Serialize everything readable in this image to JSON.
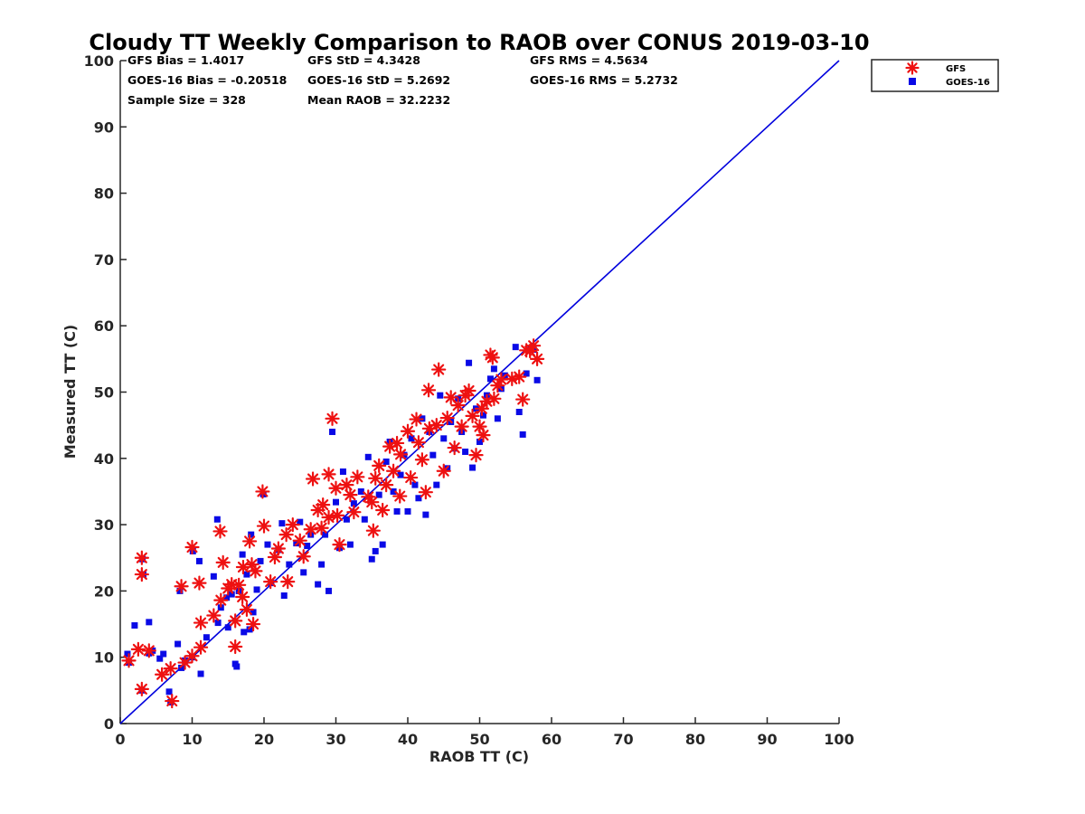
{
  "chart_data": {
    "type": "scatter",
    "title": "Cloudy TT Weekly Comparison to RAOB over CONUS 2019-03-10",
    "xlabel": "RAOB TT (C)",
    "ylabel": "Measured TT (C)",
    "xlim": [
      0,
      100
    ],
    "ylim": [
      0,
      100
    ],
    "xticks": [
      0,
      10,
      20,
      30,
      40,
      50,
      60,
      70,
      80,
      90,
      100
    ],
    "yticks": [
      0,
      10,
      20,
      30,
      40,
      50,
      60,
      70,
      80,
      90,
      100
    ],
    "grid": false,
    "legend_position": "top-right outside plot",
    "reference_line": {
      "name": "1:1 line",
      "from": [
        0,
        0
      ],
      "to": [
        100,
        100
      ],
      "color": "#0000dd"
    },
    "stats": [
      {
        "label": "GFS Bias = 1.4017"
      },
      {
        "label": "GFS StD = 4.3428"
      },
      {
        "label": "GFS RMS = 4.5634"
      },
      {
        "label": "GOES-16 Bias = -0.20518"
      },
      {
        "label": "GOES-16 StD = 5.2692"
      },
      {
        "label": "GOES-16 RMS = 5.2732"
      },
      {
        "label": "Sample Size = 328"
      },
      {
        "label": "Mean RAOB = 32.2232"
      }
    ],
    "series": [
      {
        "name": "GFS",
        "marker": "asterisk",
        "color": "#ee1111",
        "points": [
          [
            1.2,
            9.5
          ],
          [
            2.5,
            11.2
          ],
          [
            3.0,
            25.0
          ],
          [
            3.0,
            22.5
          ],
          [
            3.0,
            5.2
          ],
          [
            4.0,
            11.0
          ],
          [
            5.8,
            7.4
          ],
          [
            7.0,
            8.3
          ],
          [
            7.2,
            3.4
          ],
          [
            8.5,
            20.7
          ],
          [
            9.0,
            9.2
          ],
          [
            10.0,
            26.6
          ],
          [
            10.0,
            10.2
          ],
          [
            11.0,
            21.2
          ],
          [
            11.2,
            15.2
          ],
          [
            11.2,
            11.5
          ],
          [
            13.0,
            16.3
          ],
          [
            13.9,
            29.0
          ],
          [
            14.0,
            18.6
          ],
          [
            14.3,
            24.3
          ],
          [
            15.0,
            20.4
          ],
          [
            15.5,
            21.0
          ],
          [
            16.0,
            11.6
          ],
          [
            16.0,
            15.5
          ],
          [
            16.5,
            20.9
          ],
          [
            17.0,
            19.1
          ],
          [
            17.1,
            23.6
          ],
          [
            17.6,
            17.2
          ],
          [
            18.0,
            27.5
          ],
          [
            18.3,
            24.0
          ],
          [
            18.5,
            15.0
          ],
          [
            18.8,
            23.0
          ],
          [
            19.8,
            35.0
          ],
          [
            20.0,
            29.8
          ],
          [
            20.9,
            21.4
          ],
          [
            21.5,
            25.1
          ],
          [
            22.0,
            26.4
          ],
          [
            23.1,
            28.5
          ],
          [
            23.3,
            21.4
          ],
          [
            24.0,
            30.0
          ],
          [
            25.0,
            27.6
          ],
          [
            25.5,
            25.2
          ],
          [
            26.5,
            29.3
          ],
          [
            26.8,
            36.9
          ],
          [
            27.5,
            32.2
          ],
          [
            28.0,
            29.5
          ],
          [
            28.2,
            33.0
          ],
          [
            29.0,
            37.6
          ],
          [
            29.0,
            31.1
          ],
          [
            29.5,
            46.0
          ],
          [
            30.0,
            35.5
          ],
          [
            30.2,
            31.4
          ],
          [
            30.5,
            27.0
          ],
          [
            31.5,
            36.0
          ],
          [
            32.0,
            34.5
          ],
          [
            32.5,
            31.9
          ],
          [
            33.0,
            37.2
          ],
          [
            34.5,
            34.2
          ],
          [
            35.0,
            33.4
          ],
          [
            35.2,
            29.1
          ],
          [
            35.5,
            37.0
          ],
          [
            36.0,
            38.9
          ],
          [
            36.5,
            32.2
          ],
          [
            37.0,
            36.0
          ],
          [
            37.5,
            41.8
          ],
          [
            38.0,
            38.1
          ],
          [
            38.5,
            42.3
          ],
          [
            38.9,
            34.3
          ],
          [
            39.0,
            40.6
          ],
          [
            40.0,
            44.1
          ],
          [
            40.4,
            37.1
          ],
          [
            41.2,
            45.9
          ],
          [
            41.5,
            42.4
          ],
          [
            42.0,
            39.8
          ],
          [
            42.5,
            34.9
          ],
          [
            42.9,
            50.3
          ],
          [
            43.0,
            44.5
          ],
          [
            44.0,
            45.0
          ],
          [
            44.3,
            53.4
          ],
          [
            45.0,
            38.1
          ],
          [
            45.5,
            46.1
          ],
          [
            46.0,
            49.2
          ],
          [
            46.5,
            41.6
          ],
          [
            47.0,
            48.0
          ],
          [
            47.5,
            44.8
          ],
          [
            48.0,
            49.5
          ],
          [
            48.5,
            50.2
          ],
          [
            49.0,
            46.4
          ],
          [
            49.5,
            40.5
          ],
          [
            50.0,
            44.8
          ],
          [
            50.3,
            47.5
          ],
          [
            50.5,
            43.5
          ],
          [
            51.0,
            48.6
          ],
          [
            51.5,
            55.6
          ],
          [
            51.8,
            55.2
          ],
          [
            52.0,
            49.0
          ],
          [
            52.5,
            51.0
          ],
          [
            53.0,
            51.9
          ],
          [
            54.5,
            52.0
          ],
          [
            55.5,
            52.3
          ],
          [
            56.0,
            48.9
          ],
          [
            56.5,
            56.3
          ],
          [
            57.0,
            56.2
          ],
          [
            57.5,
            57.0
          ],
          [
            58.0,
            55.0
          ]
        ]
      },
      {
        "name": "GOES-16",
        "marker": "square",
        "color": "#0a0ae6",
        "points": [
          [
            1.0,
            10.5
          ],
          [
            1.2,
            9.2
          ],
          [
            2.0,
            14.8
          ],
          [
            3.0,
            5.0
          ],
          [
            3.1,
            24.8
          ],
          [
            3.2,
            22.5
          ],
          [
            4.0,
            15.3
          ],
          [
            4.0,
            10.6
          ],
          [
            4.5,
            11.0
          ],
          [
            5.5,
            9.8
          ],
          [
            6.0,
            10.5
          ],
          [
            6.8,
            4.8
          ],
          [
            7.0,
            3.2
          ],
          [
            8.0,
            12.0
          ],
          [
            8.3,
            20.0
          ],
          [
            8.5,
            8.4
          ],
          [
            9.0,
            9.5
          ],
          [
            10.0,
            10.0
          ],
          [
            10.1,
            26.0
          ],
          [
            11.0,
            24.5
          ],
          [
            11.2,
            7.5
          ],
          [
            12.0,
            13.0
          ],
          [
            13.0,
            22.2
          ],
          [
            13.5,
            30.8
          ],
          [
            13.6,
            15.2
          ],
          [
            14.0,
            17.5
          ],
          [
            14.8,
            19.0
          ],
          [
            15.0,
            14.5
          ],
          [
            15.5,
            19.5
          ],
          [
            16.0,
            9.0
          ],
          [
            16.2,
            8.6
          ],
          [
            16.5,
            20.0
          ],
          [
            17.0,
            25.5
          ],
          [
            17.2,
            13.8
          ],
          [
            17.6,
            22.5
          ],
          [
            18.0,
            14.2
          ],
          [
            18.2,
            28.5
          ],
          [
            18.5,
            16.8
          ],
          [
            19.0,
            20.2
          ],
          [
            19.5,
            24.5
          ],
          [
            19.9,
            34.6
          ],
          [
            20.5,
            27.0
          ],
          [
            21.0,
            21.2
          ],
          [
            22.0,
            26.2
          ],
          [
            22.5,
            30.2
          ],
          [
            22.8,
            19.3
          ],
          [
            23.5,
            24.0
          ],
          [
            24.5,
            27.2
          ],
          [
            25.0,
            30.4
          ],
          [
            25.5,
            22.8
          ],
          [
            26.0,
            26.8
          ],
          [
            26.5,
            28.5
          ],
          [
            27.5,
            21.0
          ],
          [
            28.0,
            24.0
          ],
          [
            28.5,
            28.5
          ],
          [
            29.0,
            20.0
          ],
          [
            29.5,
            44.0
          ],
          [
            30.0,
            33.4
          ],
          [
            30.5,
            26.5
          ],
          [
            31.0,
            38.0
          ],
          [
            31.5,
            30.8
          ],
          [
            32.0,
            27.0
          ],
          [
            32.5,
            33.2
          ],
          [
            33.5,
            35.0
          ],
          [
            34.0,
            30.8
          ],
          [
            34.5,
            40.2
          ],
          [
            35.0,
            24.8
          ],
          [
            35.5,
            26.0
          ],
          [
            36.0,
            34.5
          ],
          [
            36.5,
            27.0
          ],
          [
            37.0,
            39.5
          ],
          [
            37.5,
            42.5
          ],
          [
            38.0,
            35.0
          ],
          [
            38.5,
            32.0
          ],
          [
            39.0,
            37.5
          ],
          [
            39.5,
            40.5
          ],
          [
            40.0,
            32.0
          ],
          [
            40.5,
            43.0
          ],
          [
            41.0,
            36.0
          ],
          [
            41.5,
            34.0
          ],
          [
            42.0,
            46.0
          ],
          [
            42.5,
            31.5
          ],
          [
            43.0,
            44.0
          ],
          [
            43.5,
            40.5
          ],
          [
            44.0,
            36.0
          ],
          [
            44.5,
            49.5
          ],
          [
            45.0,
            43.0
          ],
          [
            45.5,
            38.5
          ],
          [
            46.0,
            45.5
          ],
          [
            46.5,
            41.5
          ],
          [
            47.0,
            49.0
          ],
          [
            47.5,
            44.0
          ],
          [
            48.0,
            41.0
          ],
          [
            48.5,
            54.4
          ],
          [
            49.0,
            38.6
          ],
          [
            49.5,
            47.5
          ],
          [
            50.0,
            42.5
          ],
          [
            50.5,
            46.5
          ],
          [
            51.0,
            49.5
          ],
          [
            51.5,
            52.0
          ],
          [
            52.0,
            53.5
          ],
          [
            52.5,
            46.0
          ],
          [
            53.0,
            50.5
          ],
          [
            53.5,
            52.5
          ],
          [
            55.0,
            56.8
          ],
          [
            55.5,
            47.0
          ],
          [
            56.0,
            43.6
          ],
          [
            56.5,
            52.8
          ],
          [
            57.5,
            56.4
          ],
          [
            58.0,
            51.8
          ]
        ]
      }
    ]
  }
}
